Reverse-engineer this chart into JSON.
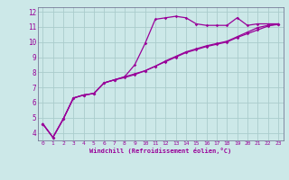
{
  "xlabel": "Windchill (Refroidissement éolien,°C)",
  "bg_color": "#cce8e8",
  "line_color": "#990099",
  "grid_color": "#aacccc",
  "x_values": [
    0,
    1,
    2,
    3,
    4,
    5,
    6,
    7,
    8,
    9,
    10,
    11,
    12,
    13,
    14,
    15,
    16,
    17,
    18,
    19,
    20,
    21,
    22,
    23
  ],
  "line1_y": [
    4.6,
    3.7,
    4.9,
    6.3,
    6.5,
    6.6,
    7.3,
    7.5,
    7.7,
    8.5,
    9.9,
    11.5,
    11.6,
    11.7,
    11.6,
    11.2,
    11.1,
    11.1,
    11.1,
    11.6,
    11.1,
    11.2,
    11.2,
    11.2
  ],
  "line2_y": [
    4.6,
    3.7,
    4.9,
    6.3,
    6.5,
    6.6,
    7.3,
    7.5,
    7.7,
    7.9,
    8.1,
    8.4,
    8.7,
    9.0,
    9.3,
    9.5,
    9.7,
    9.85,
    10.0,
    10.3,
    10.55,
    10.8,
    11.05,
    11.2
  ],
  "line3_y": [
    4.6,
    3.7,
    4.9,
    6.3,
    6.5,
    6.6,
    7.3,
    7.5,
    7.65,
    7.85,
    8.1,
    8.4,
    8.75,
    9.05,
    9.35,
    9.55,
    9.75,
    9.9,
    10.05,
    10.35,
    10.65,
    10.95,
    11.1,
    11.15
  ],
  "ylim": [
    3.5,
    12.3
  ],
  "xlim": [
    -0.5,
    23.5
  ],
  "yticks": [
    4,
    5,
    6,
    7,
    8,
    9,
    10,
    11,
    12
  ],
  "xticks": [
    0,
    1,
    2,
    3,
    4,
    5,
    6,
    7,
    8,
    9,
    10,
    11,
    12,
    13,
    14,
    15,
    16,
    17,
    18,
    19,
    20,
    21,
    22,
    23
  ]
}
